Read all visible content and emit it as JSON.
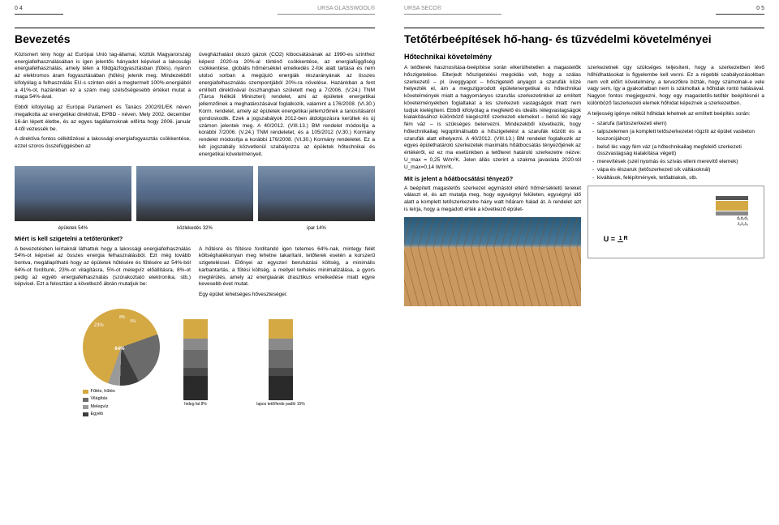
{
  "pages": {
    "left_num": "0 4",
    "right_num": "0 5",
    "brand1": "URSA GLASSWOOL®",
    "brand2": "URSA SECO®"
  },
  "left": {
    "title": "Bevezetés",
    "p1": "Közismert tény hogy az Európai Unió tag-államai, köztük Magyarország energiafelhasználásában is igen jelentős hányadot képvisel a lakossági energiafelhasználás, amely télen a földgázfogyasztásban (fűtés), nyáron az elektromos áram fogyasztásában (hűtés) jelenik meg. Mindezekből kifolyólag a felhasználás EU-s szinten eléri a megtermelt 100%-energiából a 41%-ot, hazánkban ez a szám még szélsőségesebb értéket mutat a maga 54%-ával.",
    "p2": "Ebből kifolyólag az Európai Parlament és Tanács 2002/91/EK néven megalkotta az energetikai direktívát, EPBD - néven. Mely 2002. december 16-án lépett életbe, és az egyes tagállamoknak előírta hogy 2006. január 4-től vezessék be.",
    "p3": "A direktíva fontos célkitűzései a lakossági energiafogyasztás csökkentése, ezzel szoros összefüggésben az",
    "p4": "üvegházhatást okozó gázok (CO2) kibocsátásának az 1990-es szinthez képest 2020-ra 20%-al történő csökkentése, az energiafüggőség csökkentése, globális hőmérséklet emelkedés 2-fok alatt tartása és nem utolsó sorban a megújuló energiák részarányának az összes energiafelhasználás szempontjából 20%-ra növelése. Hazánkban a fent említett direktívával összhangban született meg a 7/2006. (V.24.) TNM (Tárca Nélküli Miniszteri) rendelet, ami az épületek energetikai jellemzőinek a meghatározásával foglalkozik, valamint a 176/2008. (VI.30.) Korm. rendelet, amely az épületek energetikai jellemzőinek a tanúsításáról gondoskodik. Ezek a jogszabályok 2012-ben átdolgozásra kerültek és új számon jelentek meg. A 40/2012. (VIII.13.) BM rendelet módosítja a korábbi 7/2006. (V.24.) TNM rendeletet, és a 105/2012 (V.30.) Kormány rendelet módosítja a korábbi 176/2008. (VI.30.) Kormány rendeletet. Ez a két jogszabály közvetlenül szabályozza az épületek hőtechnikai és energetikai követelményeit.",
    "photos": [
      "épületek 54%",
      "közlekedés 32%",
      "ipar 14%"
    ],
    "q1": "Miért is kell szigetelni a tetőterünket?",
    "p5": "A bevezetésben leírtaknál láthattuk hogy a lakossági energiafelhasználás 54%-ot képvisel az összes energia felhasználásból. Ezt még tovább bontva, megállapítható hogy az épületek hűtésére és fűtésére az 54%-ból 64%-ot fordítunk, 23%-ot világításra, 5%-ot melegvíz előállításra, 8%-ot pedig az egyéb energiafelhasználás (szórakoztató elektronika, stb.) képvisel. Ezt a felosztást a következő ábrán mutatjuk be:",
    "p6": "A hűtésre és fűtésre fordítandó igen tetemes 64%-nak, mintegy felét költséghatékonyan meg lehetne takarítani, tetőterek esetén a korszerű szigeteléssel. Előnyei az egyszeri beruházási költség, a minimális karbantartás, a fűtési költség, a mellyel terhelés minimalizálása, a gyors megtérülés, amely az energiaárak drasztikus emelkedése miatt egyre kevesebb évet mutat.",
    "p7": "Egy épület lehetséges hőveszteségei:",
    "pie": {
      "segments": [
        {
          "label": "64%",
          "color": "#d4a843",
          "pct": 64
        },
        {
          "label": "23%",
          "color": "#6b6b6b",
          "pct": 23
        },
        {
          "label": "8%",
          "color": "#3d3d3d",
          "pct": 8
        },
        {
          "label": "5%",
          "color": "#9a9a9a",
          "pct": 5
        }
      ],
      "legend": [
        {
          "c": "#d4a843",
          "t": "Fűtés, hűtés"
        },
        {
          "c": "#6b6b6b",
          "t": "Világítás"
        },
        {
          "c": "#9a9a9a",
          "t": "Melegvíz"
        },
        {
          "c": "#3d3d3d",
          "t": "Egyéb"
        }
      ]
    },
    "bars": {
      "left_label": "hideg fal 8%",
      "right_label": "lapos tető/ferde padló 15%",
      "segs": [
        {
          "c": "#d4a843",
          "h": 24
        },
        {
          "c": "#8a8a8a",
          "h": 14
        },
        {
          "c": "#6b6b6b",
          "h": 22
        },
        {
          "c": "#4a4a4a",
          "h": 10
        },
        {
          "c": "#2a2a2a",
          "h": 30
        }
      ]
    }
  },
  "right": {
    "title": "Tetőtérbeépítések hő-hang- és tűzvédelmi követelményei",
    "h2": "Hőtechnikai követelmény",
    "p1": "A tetőterek hasznosítása-beépítése során elkerülhetetlen a magastetők hőszigetelése. Elterjedt hőszigetelési megoldás volt, hogy a szálas szerkezetű – pl. üveggyapot – hőszigetelő anyagot a szarufák közé helyezték el, ám a megszigorodott épületenergetikai és hőtechnikai követelmények miatt a hagyományos szarufás szerkezetinkkel az említett követelményekben foglaltakat a kis szerkezeti vastagságok miatt nem tudjuk kielégíteni. Ebből kifolyólag a megfelelő és ideális rétegvastagságok kialakításához különböző kiegészítő szerkezeti elemeket – belső léc vagy fém váz – is szükséges betervezni. Mindezekből következik, hogy hőtechnikailag legoptimálisabb a hőszigetelést a szarufák között és a szarufák alatt elhelyezni. A 40/2012. (VIII.13.) BM rendelet foglalkozik az egyes épülethatároló szerkezetek maximális hőátbocsátás tényezőjének az értékéről, ez ez ma esetünkben a tetőteret határoló szerkezetre nézve: U_max = 0,25 W/m²K. Jelen állás szerint a szakma javaslata 2020-tól U_max=0,14 W/m²K.",
    "h3a": "Mit is jelent a hőátbocsátási tényező?",
    "p2": "A beépített magastetős szerkezet egymástól eltérő hőmérsékletű tereket választ el, és azt mutatja meg, hogy egységnyi felületen, egységnyi idő alatt a komplett tetőszerkezetre hány watt hőáram halad át. A rendelet azt is leírja, hogy a megadott érték a következő épület-",
    "p3": "szerkezetnek úgy szükséges teljesíteni, hogy a szerkezetben lévő hőhídhatásokat is figyelembe kell venni. Ez a régebbi szabályozásokban nem volt előírt követelmény, a tervezőkre bízták, hogy számolnak-e vele vagy sem, így a gyakorlatban nem is számoltak a hőhidak rontó hatásával. Nagyon fontos megjegyezni, hogy egy magastetős-tetőtér beépítésnél a különböző faszerkezeti elemek hőhidat képeznek a szerkezetben.",
    "p4": "A teljesség igénye nélkül hőhidak lehetnek az említett beépítés során:",
    "list": [
      "szarufa (tartószerkezeti elem)",
      "talpszelemen (a komplett tetőszerkezetet rögzíti az épület vasbeton koszorújához)",
      "belső léc vagy fém váz (a hőtechnikailag megfelelő szerkezeti összvastagság kialakítása végett)",
      "merevítések (szél nyomás és szívás elleni merevítő elemek)",
      "vápa és élszaruk (tetőszerkezeti sík váltásoknál)",
      "kiváltások, felépítmények, tetőablakok, stb."
    ],
    "formula": {
      "labels": [
        "d₁d₂d₃",
        "λ₁λ₂λ₃"
      ],
      "eq_left": "U =",
      "eq_top": "1",
      "eq_bot": "R"
    }
  }
}
